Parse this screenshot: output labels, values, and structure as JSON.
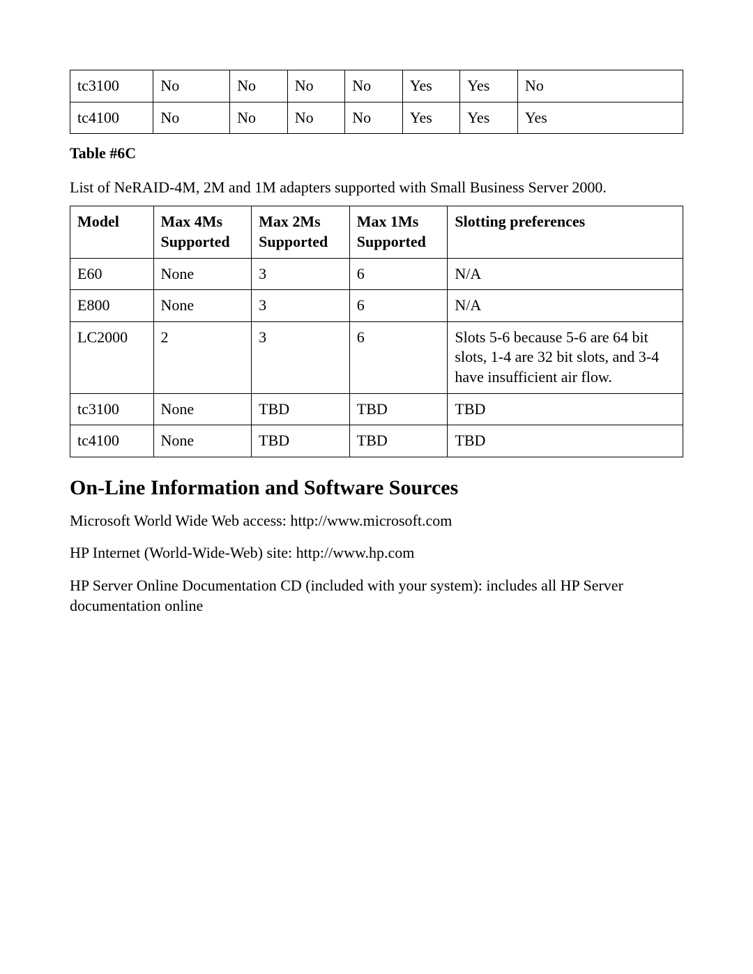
{
  "table1": {
    "rows": [
      [
        "tc3100",
        "No",
        "No",
        "No",
        "No",
        "Yes",
        "Yes",
        "No"
      ],
      [
        "tc4100",
        "No",
        "No",
        "No",
        "No",
        "Yes",
        "Yes",
        "Yes"
      ]
    ]
  },
  "caption": "Table #6C",
  "desc": "List of NeRAID-4M, 2M and 1M adapters supported with Small Business Server 2000.",
  "table2": {
    "headers": [
      "Model",
      "Max 4Ms Supported",
      "Max 2Ms Supported",
      "Max 1Ms Supported",
      "Slotting preferences"
    ],
    "rows": [
      [
        "E60",
        "None",
        "3",
        "6",
        "N/A"
      ],
      [
        "E800",
        "None",
        "3",
        "6",
        "N/A"
      ],
      [
        "LC2000",
        "2",
        "3",
        "6",
        "Slots 5-6 because 5-6 are 64 bit slots, 1-4 are 32 bit slots, and 3-4 have insufficient air flow."
      ],
      [
        "tc3100",
        "None",
        "TBD",
        "TBD",
        "TBD"
      ],
      [
        "tc4100",
        "None",
        "TBD",
        "TBD",
        "TBD"
      ]
    ]
  },
  "heading": "On-Line Information and Software Sources",
  "p1": "Microsoft World Wide Web access: http://www.microsoft.com",
  "p2": "HP Internet (World-Wide-Web) site: http://www.hp.com",
  "p3": "HP Server Online Documentation CD (included with your system): includes all HP Server documentation online"
}
